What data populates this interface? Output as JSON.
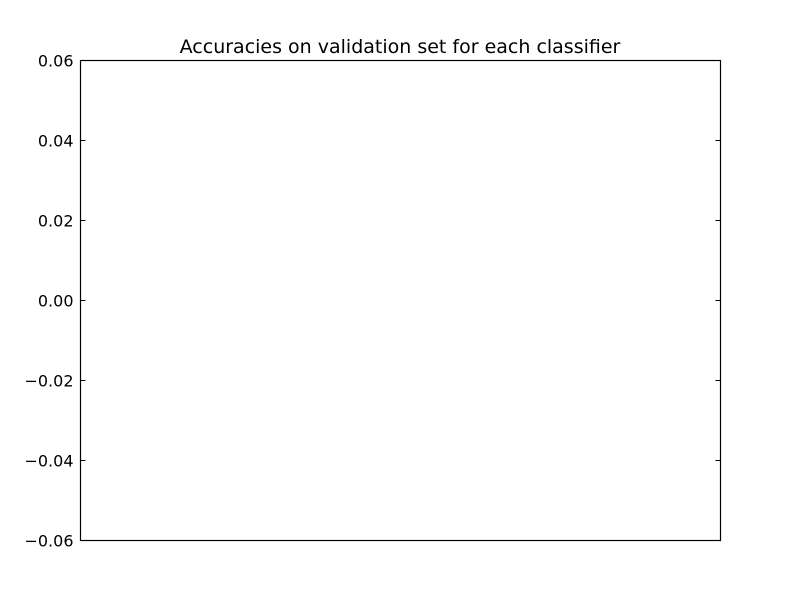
{
  "chart_data": {
    "type": "bar",
    "title": "Accuracies on validation set for each classifier",
    "xlabel": "",
    "ylabel": "",
    "categories": [],
    "values": [],
    "ylim": [
      -0.06,
      0.06
    ],
    "yticks": [
      0.06,
      0.04,
      0.02,
      0.0,
      -0.02,
      -0.04,
      -0.06
    ],
    "ytick_labels": [
      "0.06",
      "0.04",
      "0.02",
      "0.00",
      "−0.02",
      "−0.04",
      "−0.06"
    ],
    "xticks": [],
    "grid": false,
    "legend": "none"
  }
}
